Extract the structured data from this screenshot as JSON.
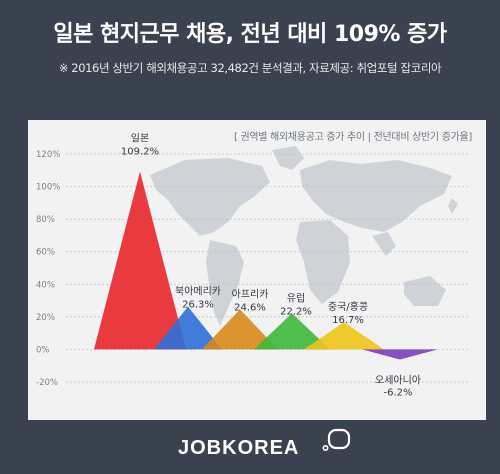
{
  "header": {
    "title": "일본 현지근무 채용, 전년 대비 109% 증가",
    "subtitle": "※ 2016년 상반기 해외채용공고 32,482건 분석결과, 자료제공: 취업포털 잡코리아"
  },
  "legend": {
    "text": "[ 권역별 해외채용공고 증가 추이 | 전년대비 상반기 증가율]"
  },
  "brand": {
    "logo_text": "JOBKOREA"
  },
  "colors": {
    "background": "#3a4250",
    "panel": "#f2f2f2",
    "map": "#cfd3d8"
  },
  "chart_data": {
    "type": "area",
    "ylim": [
      -20,
      120
    ],
    "yticks": [
      "120%",
      "100%",
      "80%",
      "60%",
      "40%",
      "20%",
      "0%",
      "-20%"
    ],
    "grid": true,
    "series": [
      {
        "name": "일본",
        "value": 109.2,
        "label": "109.2%",
        "color": "#e8262b"
      },
      {
        "name": "북아메리카",
        "value": 26.3,
        "label": "26.3%",
        "color": "#2f6fd8"
      },
      {
        "name": "아프리카",
        "value": 24.6,
        "label": "24.6%",
        "color": "#d9891b"
      },
      {
        "name": "유럽",
        "value": 22.2,
        "label": "22.2%",
        "color": "#3db83a"
      },
      {
        "name": "중국/홍콩",
        "value": 16.7,
        "label": "16.7%",
        "color": "#f0c419"
      },
      {
        "name": "오세아니아",
        "value": -6.2,
        "label": "-6.2%",
        "color": "#7b3fb8"
      }
    ]
  }
}
